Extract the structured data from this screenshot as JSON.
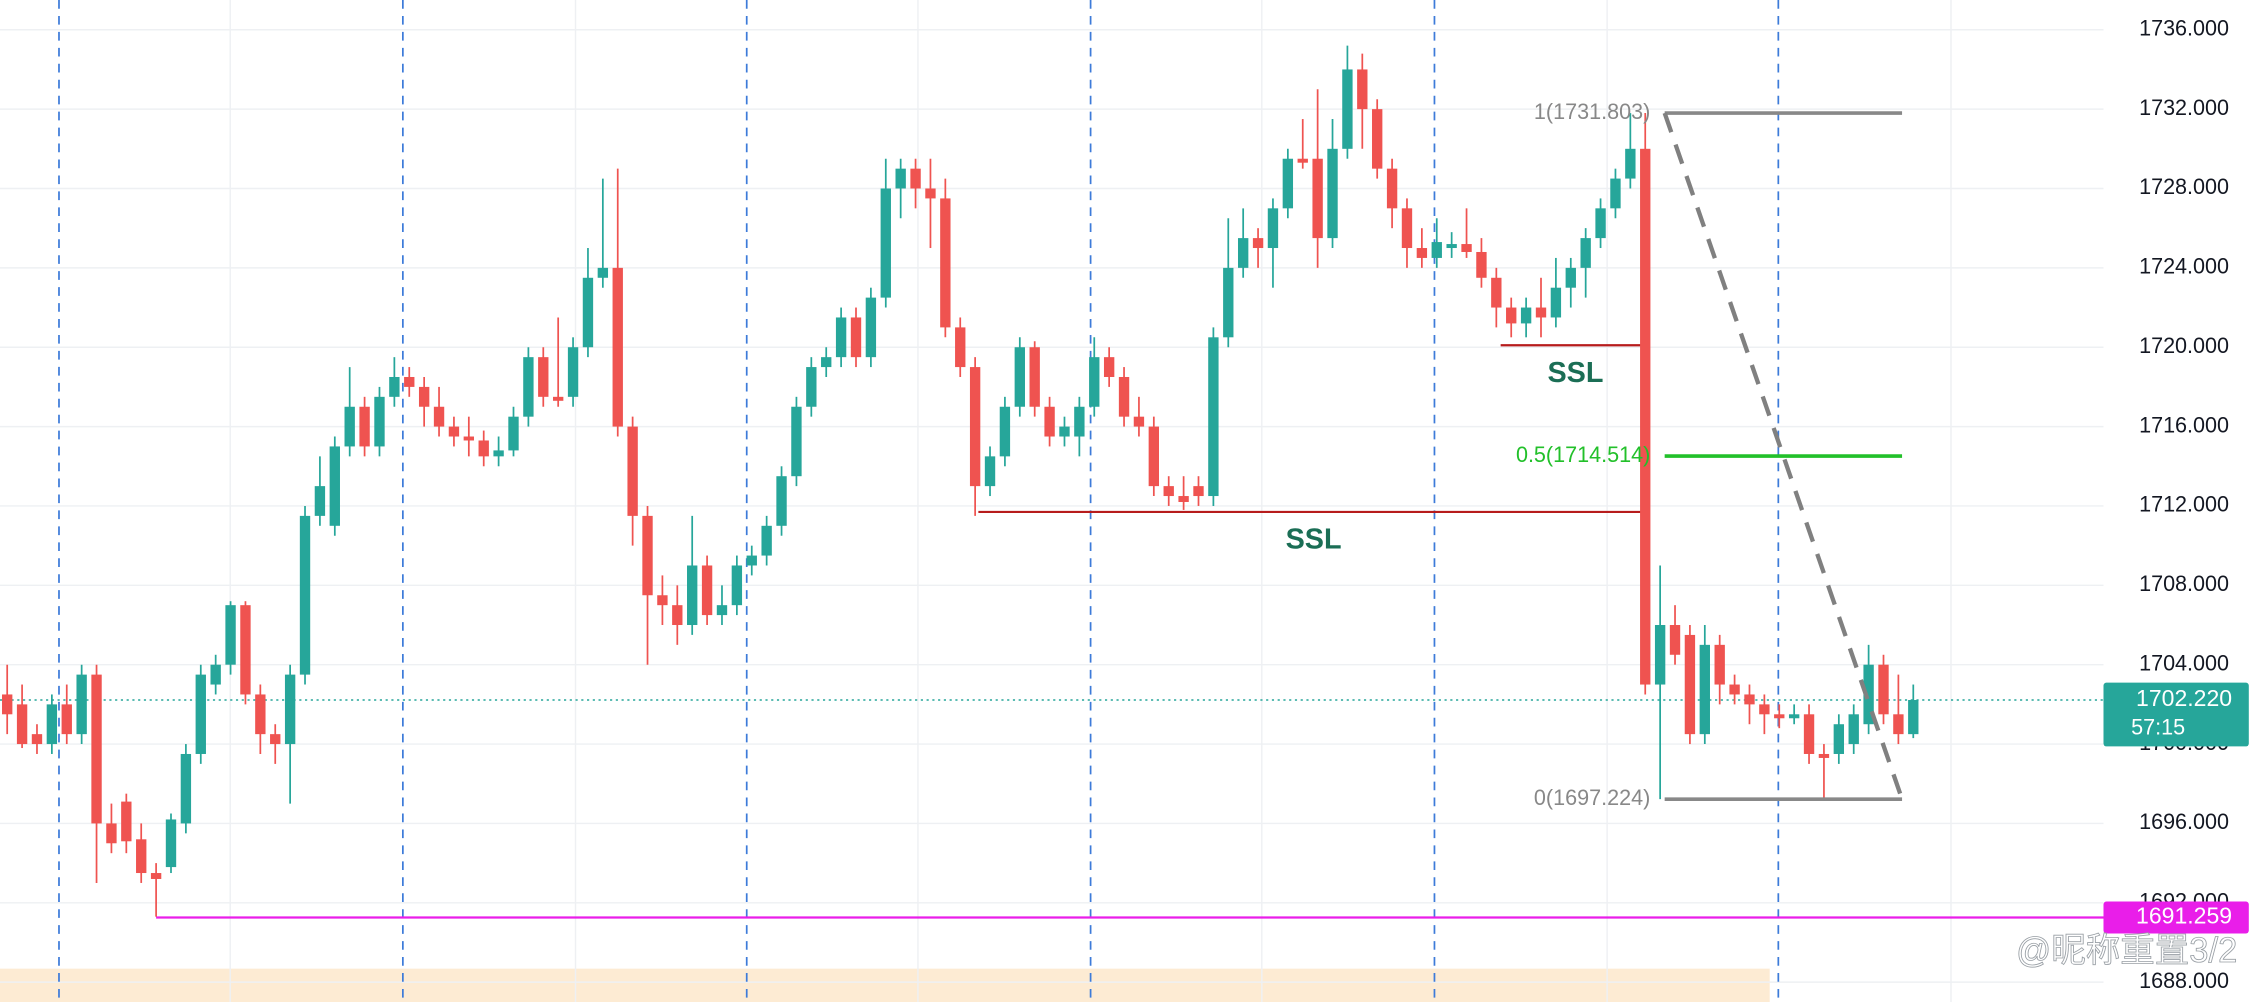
{
  "chart_data": {
    "type": "candlestick",
    "up_color": "#26a69a",
    "down_color": "#ef5350",
    "ylim": [
      1687,
      1737.5
    ],
    "yticks": [
      {
        "value": 1688,
        "label": "1688.000"
      },
      {
        "value": 1692,
        "label": "1692.000"
      },
      {
        "value": 1696,
        "label": "1696.000"
      },
      {
        "value": 1700,
        "label": "1700.000"
      },
      {
        "value": 1704,
        "label": "1704.000"
      },
      {
        "value": 1708,
        "label": "1708.000"
      },
      {
        "value": 1712,
        "label": "1712.000"
      },
      {
        "value": 1716,
        "label": "1716.000"
      },
      {
        "value": 1720,
        "label": "1720.000"
      },
      {
        "value": 1724,
        "label": "1724.000"
      },
      {
        "value": 1728,
        "label": "1728.000"
      },
      {
        "value": 1732,
        "label": "1732.000"
      },
      {
        "value": 1736,
        "label": "1736.000"
      }
    ],
    "grid": true,
    "open": [
      1702.5,
      1702,
      1700.5,
      1700,
      1702,
      1700.5,
      1703.5,
      1696,
      1697.1,
      1695.2,
      1693.5,
      1693.8,
      1696,
      1699.5,
      1703,
      1704,
      1707,
      1702.5,
      1700.5,
      1700,
      1703.5,
      1711.5,
      1711,
      1715,
      1717,
      1715,
      1717.5,
      1718.5,
      1718,
      1717,
      1716,
      1715.5,
      1715.3,
      1714.5,
      1714.8,
      1716.5,
      1719.5,
      1717.5,
      1717.5,
      1720,
      1723.5,
      1724,
      1716,
      1711.5,
      1707.5,
      1707,
      1706,
      1709,
      1706.5,
      1707,
      1709,
      1709.5,
      1711,
      1713.5,
      1717,
      1719,
      1719.5,
      1721.5,
      1719.5,
      1722.5,
      1728,
      1729,
      1728,
      1727.5,
      1721,
      1719,
      1713,
      1714.5,
      1717,
      1720,
      1717,
      1715.5,
      1715.5,
      1717,
      1719.5,
      1718.5,
      1716.5,
      1716,
      1713,
      1712.5,
      1713,
      1712.5,
      1720.5,
      1724,
      1725.5,
      1725,
      1727,
      1729.5,
      1729.5,
      1725.5,
      1730,
      1734,
      1732,
      1729,
      1727,
      1725,
      1724.5,
      1725,
      1725.2,
      1724.8,
      1723.5,
      1722,
      1721.2,
      1722,
      1721.5,
      1723,
      1724,
      1725.5,
      1727,
      1728.5,
      1730,
      1703,
      1706,
      1705.5,
      1700.5,
      1705,
      1703,
      1702.5,
      1702,
      1701.5,
      1701.3,
      1701.5,
      1699.5,
      1699.5,
      1700,
      1701,
      1704,
      1701.5,
      1700.5
    ],
    "high": [
      1704,
      1703,
      1701,
      1702.5,
      1703,
      1704,
      1704,
      1697,
      1697.5,
      1696,
      1694,
      1696.5,
      1700,
      1704,
      1704.5,
      1707.2,
      1707.2,
      1703,
      1701,
      1704,
      1712,
      1714.5,
      1715.5,
      1719,
      1717.5,
      1718,
      1719.5,
      1719,
      1718.5,
      1718,
      1716.5,
      1716.5,
      1715.8,
      1715.5,
      1717,
      1720,
      1720,
      1721.5,
      1720.5,
      1725,
      1728.5,
      1729,
      1716.5,
      1712,
      1708.5,
      1708,
      1711.5,
      1709.5,
      1708,
      1709.5,
      1710,
      1711.5,
      1714,
      1717.5,
      1719.5,
      1720,
      1722,
      1722,
      1723,
      1729.5,
      1729.5,
      1729.5,
      1729.5,
      1728.5,
      1721.5,
      1719.5,
      1715,
      1717.5,
      1720.5,
      1720.3,
      1717.5,
      1716.5,
      1717.5,
      1720.5,
      1720,
      1719,
      1717.5,
      1716.5,
      1713.5,
      1713.5,
      1713.5,
      1721,
      1726.5,
      1727,
      1726,
      1727.5,
      1730,
      1731.5,
      1733,
      1731.5,
      1735.2,
      1734.8,
      1732.5,
      1729.5,
      1727.5,
      1726,
      1726.5,
      1725.8,
      1727,
      1725.5,
      1724,
      1722.5,
      1722.5,
      1723.5,
      1724.5,
      1724.5,
      1726,
      1727.5,
      1729,
      1731.8,
      1731.803,
      1709,
      1707,
      1706,
      1706,
      1705.5,
      1703.5,
      1703,
      1702.5,
      1702,
      1702,
      1702,
      1700,
      1701.5,
      1702,
      1705,
      1704.5,
      1703.5,
      1703
    ],
    "low": [
      1700.5,
      1699.8,
      1699.5,
      1699.5,
      1700,
      1700,
      1693,
      1694.5,
      1694.5,
      1693,
      1691.3,
      1693.5,
      1695.5,
      1699,
      1702.5,
      1703.5,
      1702,
      1699.5,
      1699,
      1697,
      1703,
      1711,
      1710.5,
      1714.5,
      1714.5,
      1714.5,
      1717,
      1717.5,
      1716,
      1715.5,
      1715,
      1714.5,
      1714,
      1714,
      1714.5,
      1716,
      1717,
      1717,
      1717,
      1719.5,
      1723,
      1715.5,
      1710,
      1704,
      1706,
      1705,
      1705.5,
      1706,
      1706,
      1706.5,
      1708.5,
      1709,
      1710.5,
      1713,
      1716.5,
      1718.5,
      1719,
      1719,
      1719,
      1722,
      1726.5,
      1727,
      1725,
      1720.5,
      1718.5,
      1711.5,
      1712.5,
      1714,
      1716.5,
      1716.5,
      1715,
      1715,
      1714.5,
      1716.5,
      1718,
      1716,
      1715.5,
      1712.5,
      1712,
      1711.8,
      1712,
      1712,
      1720,
      1723.5,
      1724,
      1723,
      1726.5,
      1729,
      1724,
      1725,
      1729.5,
      1730,
      1728.5,
      1726,
      1724,
      1724,
      1724,
      1724.5,
      1724.5,
      1723,
      1721,
      1720.5,
      1720.5,
      1720.5,
      1721,
      1722,
      1722.5,
      1725,
      1726.5,
      1728,
      1702.5,
      1697.224,
      1704,
      1700,
      1700,
      1702,
      1702,
      1701,
      1700.5,
      1700.8,
      1701,
      1699,
      1697.3,
      1699,
      1699.5,
      1700.5,
      1701,
      1700,
      1700.3
    ],
    "close": [
      1701.5,
      1700,
      1700,
      1702,
      1700.5,
      1703.5,
      1696,
      1695,
      1695.1,
      1693.5,
      1693.2,
      1696.2,
      1699.5,
      1703.5,
      1704,
      1707,
      1702.5,
      1700.5,
      1700,
      1703.5,
      1711.5,
      1713,
      1715,
      1717,
      1715,
      1717.5,
      1718.5,
      1718,
      1717,
      1716,
      1715.5,
      1715.3,
      1714.5,
      1714.8,
      1716.5,
      1719.5,
      1717.5,
      1717.3,
      1720,
      1723.5,
      1724,
      1716,
      1711.5,
      1707.5,
      1707,
      1706,
      1709,
      1706.5,
      1707,
      1709,
      1709.5,
      1711,
      1713.5,
      1717,
      1719,
      1719.5,
      1721.5,
      1719.5,
      1722.5,
      1728,
      1729,
      1728,
      1727.5,
      1721,
      1719,
      1713,
      1714.5,
      1717,
      1720,
      1717,
      1715.5,
      1716,
      1717,
      1719.5,
      1718.5,
      1716.5,
      1716,
      1713,
      1712.5,
      1712.2,
      1712.5,
      1720.5,
      1724,
      1725.5,
      1725,
      1727,
      1729.5,
      1729.3,
      1725.5,
      1730,
      1734,
      1732,
      1729,
      1727,
      1725,
      1724.5,
      1725.3,
      1725.2,
      1724.8,
      1723.5,
      1722,
      1721.2,
      1722,
      1721.5,
      1723,
      1724,
      1725.5,
      1727,
      1728.5,
      1730,
      1703,
      1706,
      1704.5,
      1700.5,
      1705,
      1703,
      1702.5,
      1702,
      1701.5,
      1701.3,
      1701.5,
      1699.5,
      1699.3,
      1701,
      1701.5,
      1704,
      1701.5,
      1700.5,
      1702.22
    ],
    "fib_levels": [
      {
        "label": "1(1731.803)",
        "value": 1731.803,
        "color": "#888888"
      },
      {
        "label": "0.5(1714.514)",
        "value": 1714.514,
        "color": "#22c02a"
      },
      {
        "label": "0(1697.224)",
        "value": 1697.224,
        "color": "#888888"
      }
    ],
    "ssl_levels": [
      {
        "label": "SSL",
        "value": 1720.1
      },
      {
        "label": "SSL",
        "value": 1711.7
      }
    ],
    "last_price": {
      "value": 1702.22,
      "label": "1702.220",
      "countdown": "57:15",
      "color": "#26a69a"
    },
    "low_level": {
      "value": 1691.259,
      "label": "1691.259",
      "color": "#e91ee9"
    },
    "watermark": "@昵称重置3/2"
  }
}
